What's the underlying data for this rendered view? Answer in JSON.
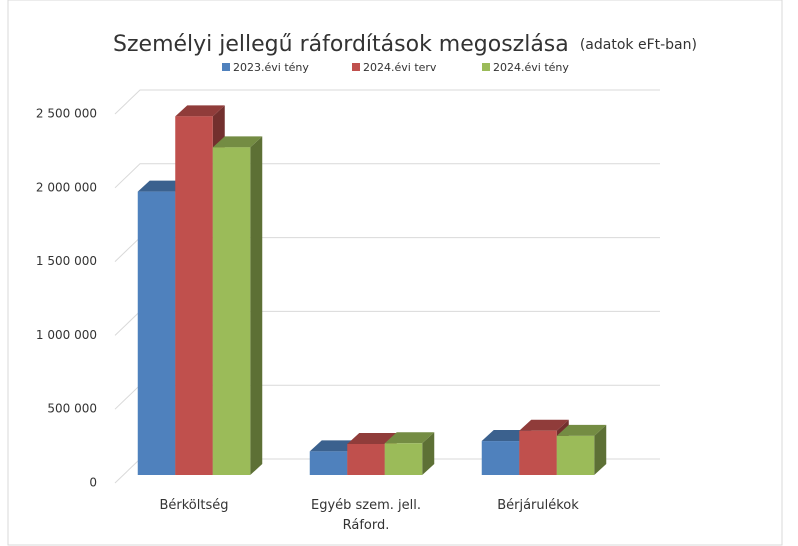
{
  "chart_data": {
    "type": "bar3d",
    "title": "Személyi jellegű ráfordítások megoszlása",
    "subtitle": "(adatok eFt-ban)",
    "categories": [
      "Bérköltség",
      "Egyéb szem. jell. Ráford.",
      "Bérjárulékok"
    ],
    "series": [
      {
        "name": "2023.évi tény",
        "color": "#4f81bd",
        "values": [
          1920000,
          160000,
          230000
        ]
      },
      {
        "name": "2024.évi terv",
        "color": "#c0504d",
        "values": [
          2430000,
          210000,
          300000
        ]
      },
      {
        "name": "2024.évi tény",
        "color": "#9bbb59",
        "values": [
          2220000,
          215000,
          265000
        ]
      }
    ],
    "ylim": [
      0,
      2500000
    ],
    "yticks": [
      0,
      {
        "value": 500000,
        "label": "500 000"
      },
      {
        "value": 1000000,
        "label": "1 000 000"
      },
      {
        "value": 1500000,
        "label": "1 500 000"
      },
      {
        "value": 2000000,
        "label": "2 000 000"
      },
      {
        "value": 2500000,
        "label": "2 500 000"
      }
    ],
    "grid": true,
    "legend": "top"
  }
}
